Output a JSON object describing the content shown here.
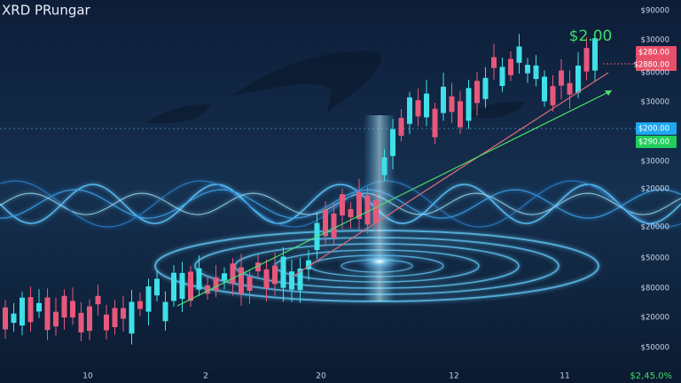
{
  "title": "XRD PRungar",
  "annotation": "$2.00",
  "price_axis": [
    "$90000",
    "$30000",
    "$280.00",
    "$2880.00",
    "$80000",
    "$30000",
    "$200.00",
    "$290.00",
    "$30000",
    "$20000",
    "$20000",
    "$50000",
    "$80000",
    "$20000",
    "$50000"
  ],
  "time_axis": [
    "10",
    "2",
    "20",
    "12",
    "11"
  ],
  "footer_badge": "$2,45.0%"
}
